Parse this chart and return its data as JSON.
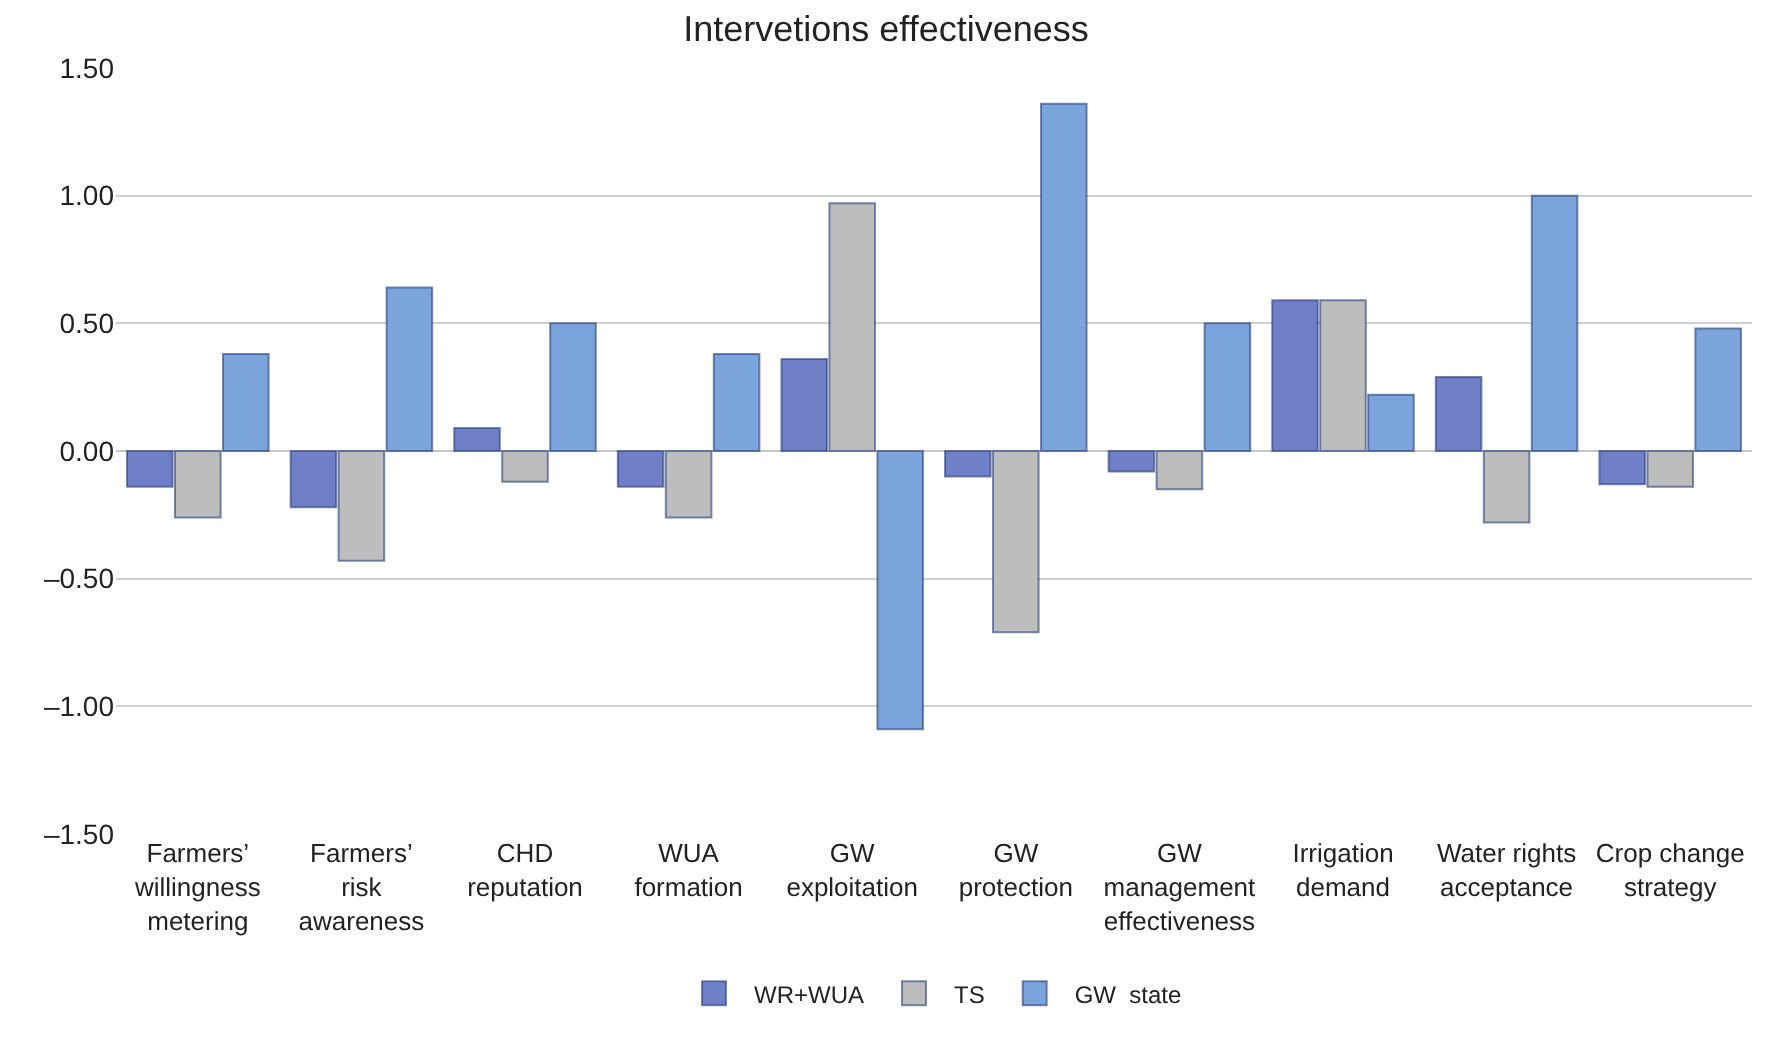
{
  "chart_data": {
    "type": "bar",
    "title": "Intervetions effectiveness",
    "categories": [
      "Farmers’ willingness metering",
      "Farmers’ risk awareness",
      "CHD reputation",
      "WUA formation",
      "GW exploitation",
      "GW protection",
      "GW management effectiveness",
      "Irrigation demand",
      "Water rights acceptance",
      "Crop change strategy"
    ],
    "series": [
      {
        "name": "WR+WUA",
        "color": "#6f7fc8",
        "values": [
          -0.14,
          -0.22,
          0.09,
          -0.14,
          0.36,
          -0.1,
          -0.08,
          0.59,
          0.29,
          -0.13
        ]
      },
      {
        "name": "TS",
        "color": "#bdbdbd",
        "values": [
          -0.26,
          -0.43,
          -0.12,
          -0.26,
          0.97,
          -0.71,
          -0.15,
          0.59,
          -0.28,
          -0.14
        ]
      },
      {
        "name": "GW  state",
        "color": "#7ca4dc",
        "values": [
          0.38,
          0.64,
          0.5,
          0.38,
          -1.09,
          1.36,
          0.5,
          0.22,
          1.0,
          0.48
        ]
      }
    ],
    "ylim": [
      -1.5,
      1.5
    ],
    "yticks": [
      {
        "value": -1.5,
        "label": "–1.50"
      },
      {
        "value": -1,
        "label": "–1.00"
      },
      {
        "value": -0.5,
        "label": "–0.50"
      },
      {
        "value": 0,
        "label": "0.00"
      },
      {
        "value": 0.5,
        "label": "0.50"
      },
      {
        "value": 1,
        "label": "1.00"
      },
      {
        "value": 1.5,
        "label": "1.50"
      }
    ],
    "grid": "y",
    "legend": "bottom"
  }
}
